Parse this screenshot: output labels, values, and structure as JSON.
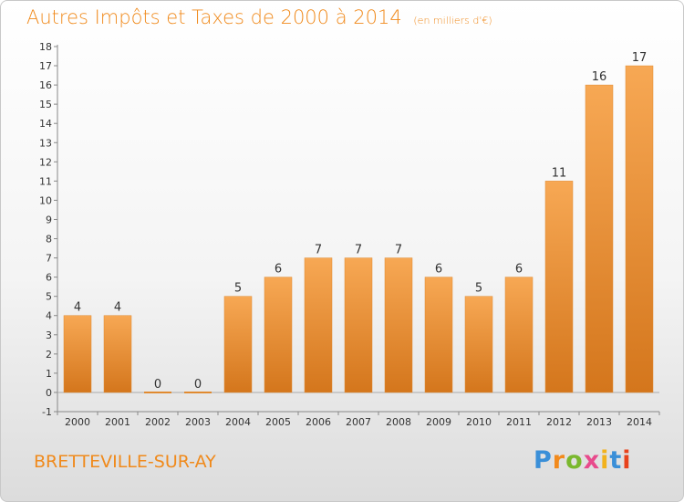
{
  "header": {
    "title": "Autres Impôts et Taxes de 2000 à 2014",
    "subtitle": "(en milliers d'€)"
  },
  "footer": {
    "commune": "BRETTEVILLE-SUR-AY",
    "brand_letters": [
      "P",
      "r",
      "o",
      "x",
      "i",
      "t",
      "i"
    ],
    "brand_colors": [
      "#3a8fd8",
      "#f28a1c",
      "#7ab82e",
      "#e84a8c",
      "#f2b21c",
      "#3a8fd8",
      "#e8421c"
    ]
  },
  "chart_data": {
    "type": "bar",
    "title": "Autres Impôts et Taxes de 2000 à 2014",
    "subtitle": "(en milliers d'€)",
    "categories": [
      "2000",
      "2001",
      "2002",
      "2003",
      "2004",
      "2005",
      "2006",
      "2007",
      "2008",
      "2009",
      "2010",
      "2011",
      "2012",
      "2013",
      "2014"
    ],
    "values": [
      4,
      4,
      0,
      0,
      5,
      6,
      7,
      7,
      7,
      6,
      5,
      6,
      11,
      16,
      17
    ],
    "data_labels": [
      "4",
      "4",
      "0",
      "0",
      "5",
      "6",
      "7",
      "7",
      "7",
      "6",
      "5",
      "6",
      "11",
      "16",
      "17"
    ],
    "yticks": [
      "-1",
      "0",
      "1",
      "2",
      "3",
      "4",
      "5",
      "6",
      "7",
      "8",
      "9",
      "10",
      "11",
      "12",
      "13",
      "14",
      "15",
      "16",
      "17",
      "18"
    ],
    "ylim": [
      -1,
      18
    ],
    "grid": false,
    "legend": "none",
    "bar_color_top": "#f7a854",
    "bar_color_bottom": "#d4761c",
    "text_color": "#333333"
  }
}
